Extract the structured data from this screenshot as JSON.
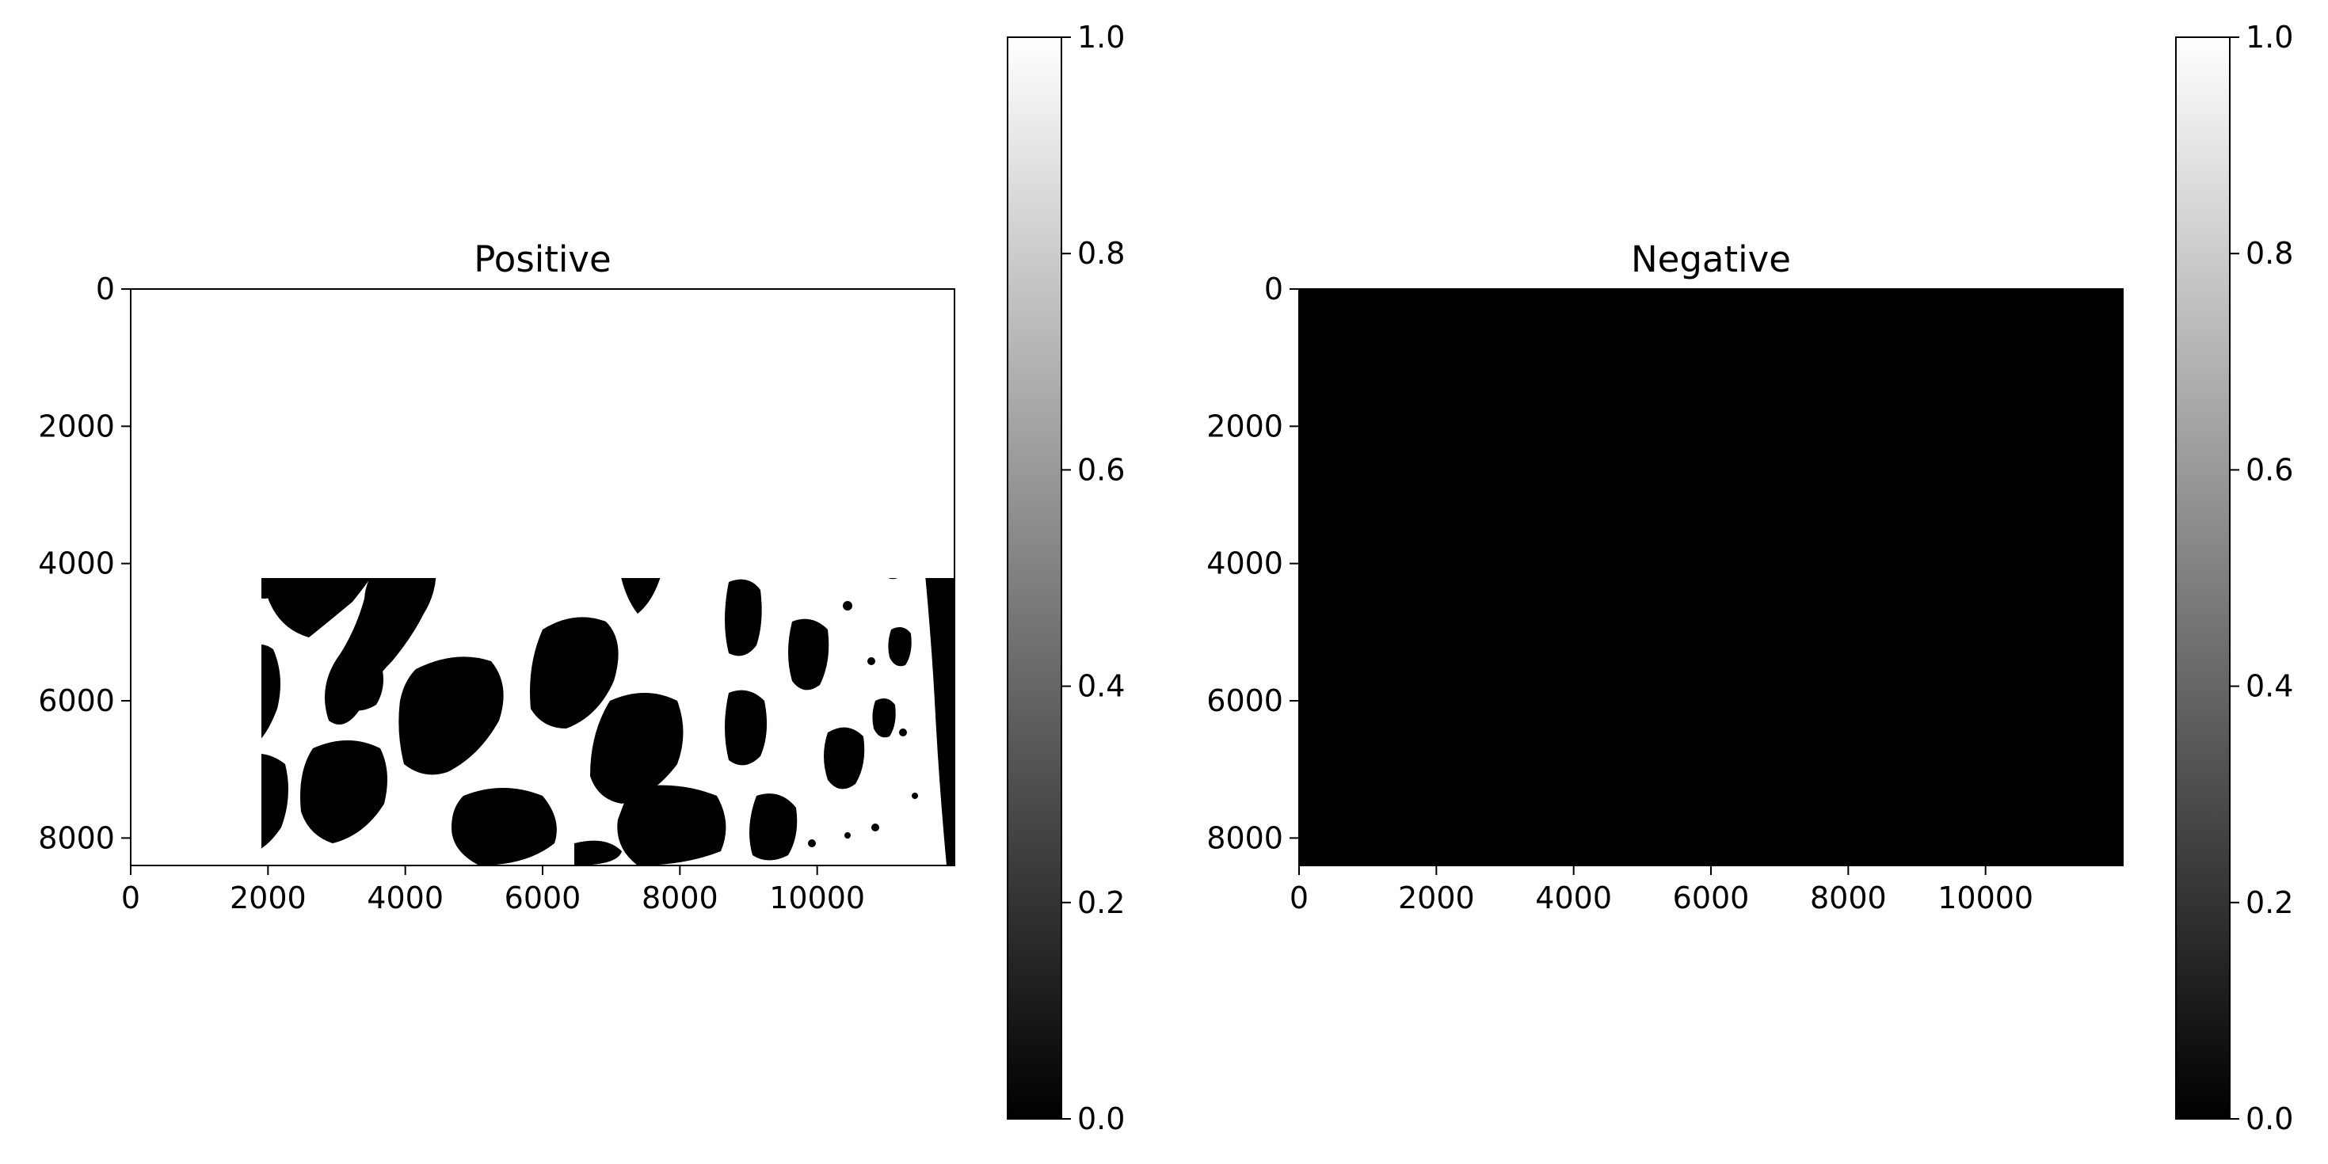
{
  "figure": {
    "type": "image-pair-with-colorbars",
    "colormap": "gray"
  },
  "chart_data": [
    {
      "type": "heatmap",
      "title": "Positive",
      "xlabel": "",
      "ylabel": "",
      "xlim": [
        0,
        12000
      ],
      "ylim": [
        8400,
        0
      ],
      "x_ticks": [
        "0",
        "2000",
        "4000",
        "6000",
        "8000",
        "10000"
      ],
      "x_tick_values": [
        0,
        2000,
        4000,
        6000,
        8000,
        10000
      ],
      "y_ticks": [
        "0",
        "2000",
        "4000",
        "6000",
        "8000"
      ],
      "y_tick_values": [
        0,
        2000,
        4000,
        6000,
        8000
      ],
      "colorbar": {
        "range": [
          0.0,
          1.0
        ],
        "ticks": [
          "0.0",
          "0.2",
          "0.4",
          "0.6",
          "0.8",
          "1.0"
        ],
        "tick_values": [
          0.0,
          0.2,
          0.4,
          0.6,
          0.8,
          1.0
        ]
      },
      "background_value": 1,
      "inverted": false
    },
    {
      "type": "heatmap",
      "title": "Negative",
      "xlabel": "",
      "ylabel": "",
      "xlim": [
        0,
        12000
      ],
      "ylim": [
        8400,
        0
      ],
      "x_ticks": [
        "0",
        "2000",
        "4000",
        "6000",
        "8000",
        "10000"
      ],
      "x_tick_values": [
        0,
        2000,
        4000,
        6000,
        8000,
        10000
      ],
      "y_ticks": [
        "0",
        "2000",
        "4000",
        "6000",
        "8000"
      ],
      "y_tick_values": [
        0,
        2000,
        4000,
        6000,
        8000
      ],
      "colorbar": {
        "range": [
          0.0,
          1.0
        ],
        "ticks": [
          "0.0",
          "0.2",
          "0.4",
          "0.6",
          "0.8",
          "1.0"
        ],
        "tick_values": [
          0.0,
          0.2,
          0.4,
          0.6,
          0.8,
          1.0
        ]
      },
      "background_value": 0,
      "inverted": true
    }
  ]
}
